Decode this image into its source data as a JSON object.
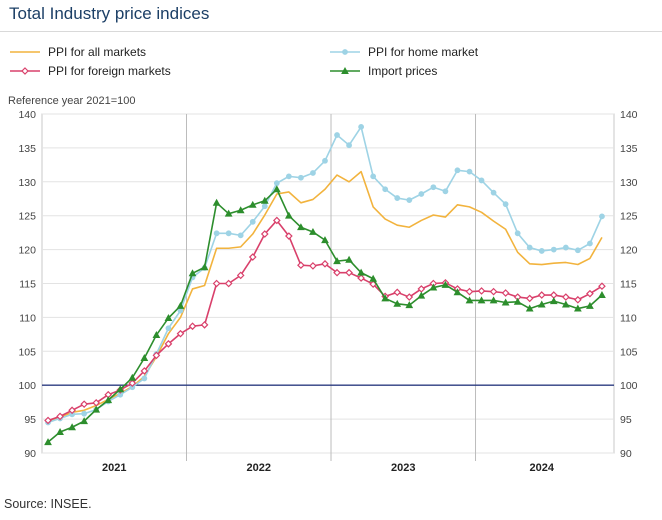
{
  "title": "Total Industry price indices",
  "source": "Source: INSEE.",
  "chart_data": {
    "type": "line",
    "title": "Total Industry price indices",
    "reference_note": "Reference year 2021=100",
    "x_categories": [
      "2021",
      "2022",
      "2023",
      "2024"
    ],
    "ylim": [
      90,
      140
    ],
    "yticks": [
      90,
      95,
      100,
      105,
      110,
      115,
      120,
      125,
      130,
      135,
      140
    ],
    "grid": true,
    "reference_line": 100,
    "legend_position": "top",
    "months": [
      "2021-01",
      "2021-02",
      "2021-03",
      "2021-04",
      "2021-05",
      "2021-06",
      "2021-07",
      "2021-08",
      "2021-09",
      "2021-10",
      "2021-11",
      "2021-12",
      "2022-01",
      "2022-02",
      "2022-03",
      "2022-04",
      "2022-05",
      "2022-06",
      "2022-07",
      "2022-08",
      "2022-09",
      "2022-10",
      "2022-11",
      "2022-12",
      "2023-01",
      "2023-02",
      "2023-03",
      "2023-04",
      "2023-05",
      "2023-06",
      "2023-07",
      "2023-08",
      "2023-09",
      "2023-10",
      "2023-11",
      "2023-12",
      "2024-01",
      "2024-02",
      "2024-03",
      "2024-04",
      "2024-05",
      "2024-06",
      "2024-07",
      "2024-08",
      "2024-09",
      "2024-10",
      "2024-11"
    ],
    "series": [
      {
        "name": "PPI for all markets",
        "color": "#f2b33d",
        "marker": "none",
        "values": [
          94.7,
          95.3,
          96.0,
          96.3,
          97.0,
          97.9,
          98.8,
          99.8,
          101.3,
          104.2,
          107.6,
          110.0,
          114.2,
          114.7,
          120.2,
          120.2,
          120.4,
          122.3,
          125.1,
          128.2,
          128.5,
          126.9,
          127.4,
          128.9,
          131.0,
          130.0,
          131.5,
          126.3,
          124.5,
          123.6,
          123.3,
          124.3,
          125.1,
          124.8,
          126.6,
          126.3,
          125.5,
          124.2,
          123.0,
          119.6,
          117.9,
          117.8,
          118.0,
          118.1,
          117.8,
          118.7,
          121.8
        ]
      },
      {
        "name": "PPI for home market",
        "color": "#9ed3e5",
        "marker": "circle",
        "values": [
          94.5,
          95.1,
          95.7,
          95.8,
          96.4,
          97.6,
          98.6,
          99.7,
          101.0,
          104.6,
          108.4,
          111.0,
          115.9,
          117.3,
          122.4,
          122.4,
          122.1,
          124.1,
          126.4,
          129.8,
          130.8,
          130.6,
          131.3,
          133.1,
          136.9,
          135.4,
          138.1,
          130.8,
          128.9,
          127.6,
          127.3,
          128.2,
          129.2,
          128.6,
          131.7,
          131.5,
          130.2,
          128.4,
          126.7,
          122.4,
          120.3,
          119.8,
          120.0,
          120.3,
          119.9,
          120.9,
          124.9
        ]
      },
      {
        "name": "PPI for foreign markets",
        "color": "#d9406b",
        "marker": "diamond",
        "values": [
          94.8,
          95.4,
          96.3,
          97.2,
          97.4,
          98.6,
          99.3,
          100.3,
          102.1,
          104.4,
          106.1,
          107.6,
          108.7,
          108.9,
          115.0,
          115.0,
          116.2,
          118.9,
          122.3,
          124.3,
          122.0,
          117.7,
          117.6,
          117.9,
          116.6,
          116.6,
          115.8,
          114.9,
          113.1,
          113.7,
          113.0,
          114.2,
          115.0,
          115.1,
          114.2,
          113.8,
          113.9,
          113.8,
          113.6,
          113.0,
          112.8,
          113.3,
          113.3,
          113.0,
          112.6,
          113.5,
          114.6
        ]
      },
      {
        "name": "Import prices",
        "color": "#2d8e2d",
        "marker": "triangle",
        "values": [
          91.6,
          93.1,
          93.8,
          94.7,
          96.4,
          97.8,
          99.4,
          101.1,
          104.0,
          107.4,
          109.9,
          111.7,
          116.5,
          117.4,
          126.9,
          125.3,
          125.8,
          126.6,
          127.2,
          128.9,
          125.0,
          123.3,
          122.6,
          121.4,
          118.3,
          118.5,
          116.6,
          115.7,
          112.8,
          112.0,
          111.8,
          113.2,
          114.4,
          114.8,
          113.7,
          112.5,
          112.5,
          112.5,
          112.2,
          112.3,
          111.3,
          111.9,
          112.4,
          111.9,
          111.3,
          111.7,
          113.3
        ]
      }
    ]
  }
}
